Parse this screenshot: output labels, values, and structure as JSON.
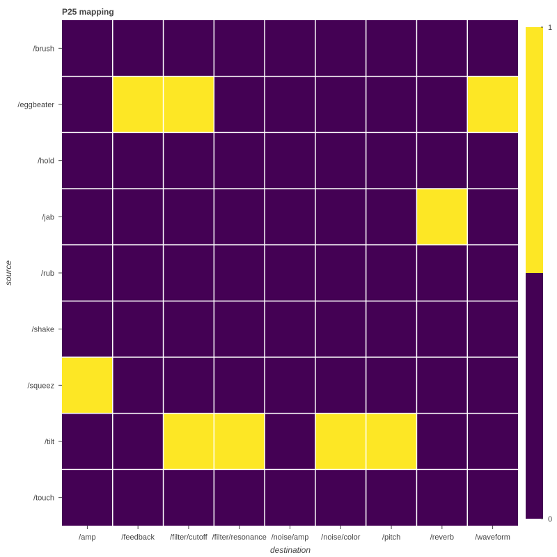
{
  "chart_data": {
    "type": "heatmap",
    "title": "P25 mapping",
    "xlabel": "destination",
    "ylabel": "source",
    "x_categories": [
      "/amp",
      "/feedback",
      "/filter/cutoff",
      "/filter/resonance",
      "/noise/amp",
      "/noise/color",
      "/pitch",
      "/reverb",
      "/waveform"
    ],
    "y_categories": [
      "/brush",
      "/eggbeater",
      "/hold",
      "/jab",
      "/rub",
      "/shake",
      "/squeez",
      "/tilt",
      "/touch"
    ],
    "values": [
      [
        0,
        0,
        0,
        0,
        0,
        0,
        0,
        0,
        0
      ],
      [
        0,
        1,
        1,
        0,
        0,
        0,
        0,
        0,
        1
      ],
      [
        0,
        0,
        0,
        0,
        0,
        0,
        0,
        0,
        0
      ],
      [
        0,
        0,
        0,
        0,
        0,
        0,
        0,
        1,
        0
      ],
      [
        0,
        0,
        0,
        0,
        0,
        0,
        0,
        0,
        0
      ],
      [
        0,
        0,
        0,
        0,
        0,
        0,
        0,
        0,
        0
      ],
      [
        1,
        0,
        0,
        0,
        0,
        0,
        0,
        0,
        0
      ],
      [
        0,
        0,
        1,
        1,
        0,
        1,
        1,
        0,
        0
      ],
      [
        0,
        0,
        0,
        0,
        0,
        0,
        0,
        0,
        0
      ]
    ],
    "colorbar": {
      "min": 0,
      "max": 1,
      "tick_labels": [
        "1",
        "0"
      ],
      "low_color": "#440154",
      "high_color": "#fde725"
    },
    "grid": true
  },
  "colors": {
    "cell_low": "#440154",
    "cell_high": "#fde725",
    "grid_line": "#ffffff",
    "text": "#444444",
    "title": "#444444"
  }
}
